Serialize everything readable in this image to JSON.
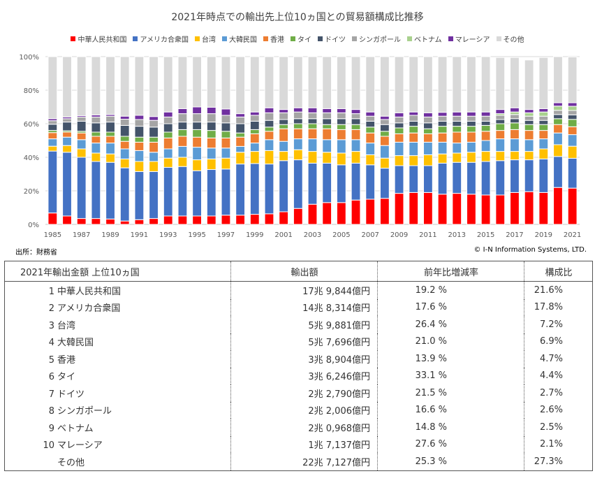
{
  "chart_data": {
    "type": "bar",
    "stacked": true,
    "percent": true,
    "title": "2021年時点での輸出先上位10ヵ国との貿易額構成比推移",
    "xlabel": "",
    "ylabel": "",
    "ylim": [
      0,
      100
    ],
    "y_ticks": [
      "0%",
      "20%",
      "40%",
      "60%",
      "80%",
      "100%"
    ],
    "grid": true,
    "legend_position": "top",
    "categories": [
      "1985",
      "1986",
      "1987",
      "1988",
      "1989",
      "1990",
      "1991",
      "1992",
      "1993",
      "1994",
      "1995",
      "1996",
      "1997",
      "1998",
      "1999",
      "2000",
      "2001",
      "2002",
      "2003",
      "2004",
      "2005",
      "2006",
      "2007",
      "2008",
      "2009",
      "2010",
      "2011",
      "2012",
      "2013",
      "2014",
      "2015",
      "2016",
      "2017",
      "2018",
      "2019",
      "2020",
      "2021"
    ],
    "x_tick_labels": [
      "1985",
      "1987",
      "1989",
      "1991",
      "1993",
      "1995",
      "1997",
      "1999",
      "2001",
      "2003",
      "2005",
      "2007",
      "2009",
      "2011",
      "2013",
      "2015",
      "2017",
      "2019",
      "2021"
    ],
    "series": [
      {
        "name": "中華人民共和国",
        "color": "#ff0000",
        "values": [
          6.8,
          5,
          3.5,
          3.5,
          3.2,
          2,
          2.8,
          3.5,
          5,
          5,
          5,
          5,
          5.5,
          5.5,
          6,
          6.3,
          7.5,
          9.5,
          12,
          13,
          13,
          14.5,
          15,
          15.5,
          18.5,
          19,
          19,
          18,
          18.5,
          18,
          17.5,
          17.5,
          19,
          19.5,
          19,
          22,
          21.6
        ]
      },
      {
        "name": "アメリカ合衆国",
        "color": "#4472c4",
        "values": [
          36.9,
          38,
          36.5,
          34,
          33.8,
          31.7,
          28.7,
          28,
          29,
          29.5,
          27,
          27.7,
          27.5,
          30.5,
          30.3,
          29.7,
          30.5,
          29,
          24.5,
          23.5,
          22.5,
          22,
          20.5,
          18,
          16.5,
          16,
          16,
          18.5,
          18.5,
          19,
          20,
          20.5,
          19.5,
          19,
          20,
          18.5,
          17.8
        ]
      },
      {
        "name": "台湾",
        "color": "#ffc000",
        "values": [
          2.9,
          4,
          5,
          5,
          5,
          5.3,
          6,
          6,
          5.5,
          5.5,
          6.5,
          6.3,
          6.5,
          7,
          7.2,
          8,
          5.5,
          6,
          7,
          6.5,
          7,
          7,
          6,
          6,
          6,
          6,
          6.5,
          5.5,
          5.5,
          6,
          6,
          5.5,
          5,
          5,
          6,
          7,
          7.2
        ]
      },
      {
        "name": "大韓民国",
        "color": "#5b9bd5",
        "values": [
          4.4,
          5,
          5.5,
          6,
          6.5,
          6,
          6.5,
          5.5,
          5.5,
          6.5,
          7.5,
          6.5,
          6,
          3.5,
          5,
          6.5,
          6,
          6.5,
          7.5,
          7.5,
          8,
          7,
          7,
          7.5,
          8,
          8,
          7.5,
          7,
          6,
          6,
          6.5,
          7.5,
          7.5,
          7,
          6,
          7,
          6.9
        ]
      },
      {
        "name": "香港",
        "color": "#ed7d31",
        "values": [
          3.7,
          3,
          4,
          4,
          4,
          4.5,
          5,
          6,
          6.5,
          6,
          6,
          6,
          6,
          5.5,
          5.5,
          5,
          7.5,
          6,
          6,
          6.5,
          6,
          6,
          6,
          5.5,
          5,
          5.5,
          5,
          5.5,
          6.5,
          6,
          5.5,
          5,
          5.5,
          5.5,
          5,
          5,
          4.7
        ]
      },
      {
        "name": "タイ",
        "color": "#70ad47",
        "values": [
          1.3,
          0.8,
          1,
          2.5,
          2.5,
          3,
          3,
          3,
          3.5,
          4,
          4.5,
          4.5,
          4,
          2.5,
          2.5,
          2.5,
          2.5,
          3,
          3,
          2.5,
          3,
          3,
          3.5,
          3,
          3.5,
          4,
          3,
          4,
          3.5,
          3.5,
          3.5,
          4,
          4,
          3.5,
          3.5,
          3.5,
          4.4
        ]
      },
      {
        "name": "ドイツ",
        "color": "#44546a",
        "values": [
          3.7,
          5.2,
          6,
          5.5,
          6,
          6.5,
          6.5,
          6,
          5,
          4.5,
          4.5,
          5,
          5,
          5.5,
          5,
          4,
          3,
          3,
          3,
          3.5,
          3.5,
          3.5,
          3.5,
          4,
          3,
          3,
          3.5,
          3,
          3,
          3,
          2.5,
          2.5,
          2.5,
          2.5,
          2.5,
          2.5,
          2.7
        ]
      },
      {
        "name": "シンガポール",
        "color": "#a5a5a5",
        "values": [
          2.1,
          2,
          2.5,
          3.5,
          3.5,
          3.7,
          4,
          4,
          4,
          5,
          5,
          5,
          4.5,
          4,
          3.5,
          4.5,
          4,
          4,
          3.5,
          3.5,
          3.5,
          3,
          3,
          3,
          3.5,
          3.5,
          3.5,
          3,
          3,
          3,
          3,
          2.5,
          2.5,
          2.5,
          2.5,
          2.5,
          2.6
        ]
      },
      {
        "name": "ベトナム",
        "color": "#a9d18e",
        "values": [
          0,
          0,
          0,
          0,
          0,
          0,
          0,
          0,
          0,
          0,
          0,
          0,
          0,
          0,
          0,
          0,
          0,
          0,
          0,
          0,
          0,
          0,
          0,
          0,
          0,
          0,
          0,
          0,
          0,
          0,
          0,
          1,
          1.5,
          2,
          2.5,
          2.5,
          2.5
        ]
      },
      {
        "name": "マレーシア",
        "color": "#7030a0",
        "values": [
          1.2,
          1,
          0.8,
          1.2,
          1,
          1.8,
          2.5,
          2.3,
          3,
          3,
          4,
          3.8,
          3.8,
          2,
          2,
          3,
          2,
          2.5,
          3,
          2.5,
          2.5,
          2.5,
          2.5,
          2,
          2.5,
          2,
          2.5,
          2.3,
          2.5,
          2.5,
          2.5,
          2.5,
          2.5,
          2,
          2,
          2,
          2.1
        ]
      },
      {
        "name": "その他",
        "color": "#d9d9d9",
        "values": [
          37,
          36,
          35.2,
          34.8,
          34.5,
          35.5,
          35,
          35.7,
          33,
          31,
          30,
          30.2,
          31.2,
          34,
          33,
          30.5,
          31.5,
          30.5,
          30.5,
          31,
          31,
          31.5,
          33,
          35.5,
          33.5,
          33,
          33.5,
          33.2,
          33,
          33,
          33,
          31,
          30,
          29.5,
          30.5,
          27.5,
          27.3
        ]
      }
    ]
  },
  "source": "出所：財務省",
  "copyright": "© I-N Information Systems, LTD.",
  "table": {
    "headers": [
      "2021年輸出金額 上位10ヵ国",
      "輸出額",
      "前年比増減率",
      "構成比"
    ],
    "rows": [
      {
        "rank": "1",
        "country": "中華人民共和国",
        "amount": "17兆 9,844億円",
        "rate": "19.2 %",
        "share": "21.6%"
      },
      {
        "rank": "2",
        "country": "アメリカ合衆国",
        "amount": "14兆 8,314億円",
        "rate": "17.6 %",
        "share": "17.8%"
      },
      {
        "rank": "3",
        "country": "台湾",
        "amount": "5兆 9,881億円",
        "rate": "26.4 %",
        "share": "7.2%"
      },
      {
        "rank": "4",
        "country": "大韓民国",
        "amount": "5兆 7,696億円",
        "rate": "21.0 %",
        "share": "6.9%"
      },
      {
        "rank": "5",
        "country": "香港",
        "amount": "3兆 8,904億円",
        "rate": "13.9 %",
        "share": "4.7%"
      },
      {
        "rank": "6",
        "country": "タイ",
        "amount": "3兆 6,246億円",
        "rate": "33.1 %",
        "share": "4.4%"
      },
      {
        "rank": "7",
        "country": "ドイツ",
        "amount": "2兆 2,790億円",
        "rate": "21.5 %",
        "share": "2.7%"
      },
      {
        "rank": "8",
        "country": "シンガポール",
        "amount": "2兆 2,006億円",
        "rate": "16.6 %",
        "share": "2.6%"
      },
      {
        "rank": "9",
        "country": "ベトナム",
        "amount": "2兆 0,968億円",
        "rate": "14.8 %",
        "share": "2.5%"
      },
      {
        "rank": "10",
        "country": "マレーシア",
        "amount": "1兆 7,137億円",
        "rate": "27.6 %",
        "share": "2.1%"
      },
      {
        "rank": "",
        "country": "その他",
        "amount": "22兆 7,127億円",
        "rate": "25.3 %",
        "share": "27.3%"
      }
    ]
  }
}
